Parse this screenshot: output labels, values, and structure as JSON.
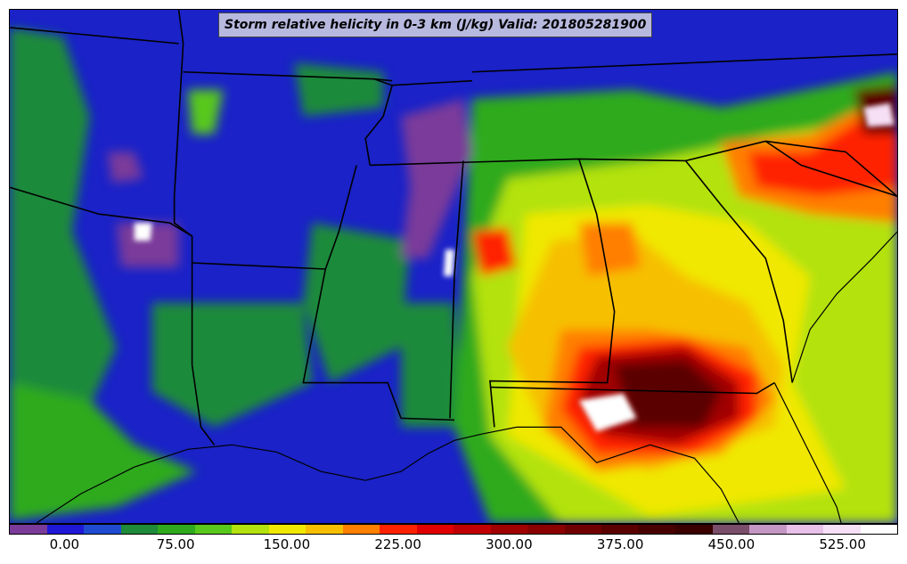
{
  "title": "Storm relative helicity in 0-3 km (J/kg) Valid: 201805281900",
  "colorbar": {
    "colors": [
      "#7a3b9a",
      "#1f17d6",
      "#1f4bd0",
      "#1e8a3a",
      "#2faa1e",
      "#58c81c",
      "#b3e20e",
      "#f0e800",
      "#f6c000",
      "#ff7f00",
      "#ff2200",
      "#e00000",
      "#c00000",
      "#a00000",
      "#8a0000",
      "#700000",
      "#5a0000",
      "#480000",
      "#3a0000",
      "#7a4d6a",
      "#c496c4",
      "#e8c0e8",
      "#f6e0f6",
      "#ffffff"
    ],
    "tick_labels": [
      "0.00",
      "75.00",
      "150.00",
      "225.00",
      "300.00",
      "375.00",
      "450.00",
      "525.00"
    ],
    "tick_values": [
      0,
      75,
      150,
      225,
      300,
      375,
      450,
      525
    ],
    "range": [
      -37.5,
      562.5
    ]
  },
  "map": {
    "background_color": "#1a22c8",
    "boundary_color": "#000000"
  }
}
